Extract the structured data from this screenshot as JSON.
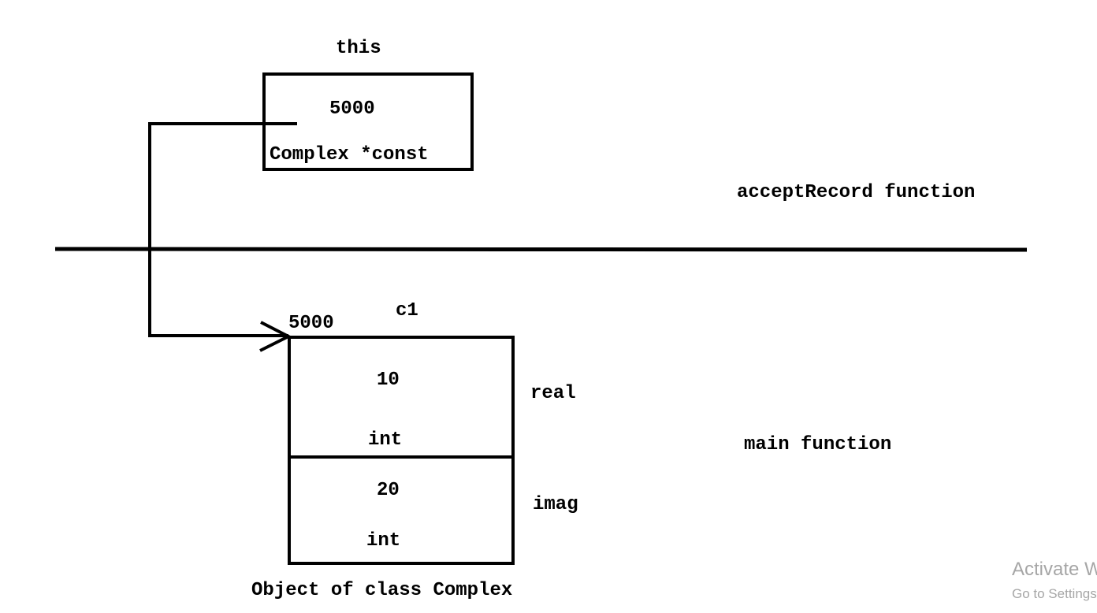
{
  "this_pointer": {
    "label": "this",
    "value": "5000",
    "type": "Complex *const"
  },
  "scopes": {
    "upper": "acceptRecord function",
    "lower": "main function"
  },
  "object": {
    "name": "c1",
    "address": "5000",
    "caption": "Object of class Complex",
    "fields": [
      {
        "value": "10",
        "type": "int",
        "name": "real"
      },
      {
        "value": "20",
        "type": "int",
        "name": "imag"
      }
    ]
  },
  "watermark": {
    "title": "Activate W",
    "subtitle": "Go to Settings"
  }
}
